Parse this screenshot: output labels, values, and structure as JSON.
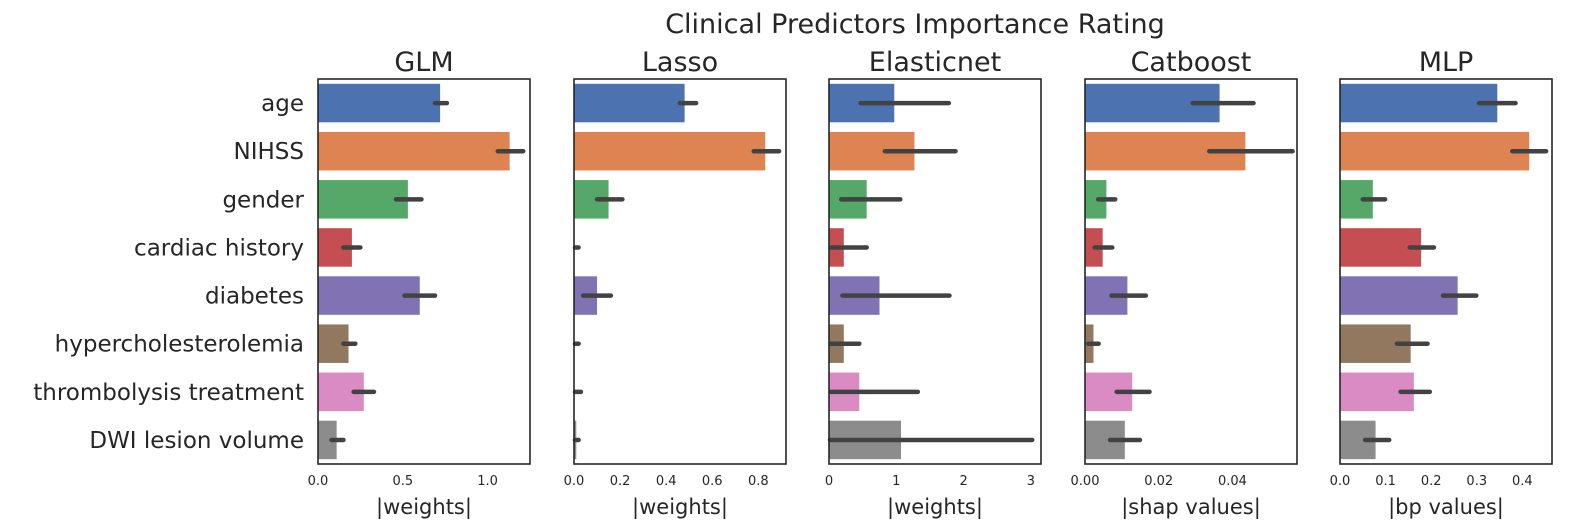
{
  "chart_data": {
    "type": "bar",
    "orientation": "horizontal",
    "title": "Clinical Predictors Importance Rating",
    "categories": [
      "age",
      "NIHSS",
      "gender",
      "cardiac history",
      "diabetes",
      "hypercholesterolemia",
      "thrombolysis treatment",
      "DWI lesion volume"
    ],
    "colors": [
      "#4c72b0",
      "#dd8452",
      "#55a868",
      "#c44e52",
      "#8172b3",
      "#937860",
      "#da8bc3",
      "#8c8c8c"
    ],
    "error_bar_color": "#424242",
    "grid": false,
    "panels": [
      {
        "title": "GLM",
        "xlabel": "|weights|",
        "xlim": [
          0,
          1.25
        ],
        "xticks": [
          0.0,
          0.5,
          1.0
        ],
        "xtick_labels": [
          "0.0",
          "0.5",
          "1.0"
        ],
        "values": [
          0.72,
          1.13,
          0.53,
          0.2,
          0.6,
          0.18,
          0.27,
          0.11
        ],
        "ci": [
          [
            0.69,
            0.76
          ],
          [
            1.06,
            1.21
          ],
          [
            0.46,
            0.61
          ],
          [
            0.15,
            0.25
          ],
          [
            0.51,
            0.69
          ],
          [
            0.15,
            0.22
          ],
          [
            0.21,
            0.33
          ],
          [
            0.08,
            0.15
          ]
        ]
      },
      {
        "title": "Lasso",
        "xlabel": "|weights|",
        "xlim": [
          0,
          0.92
        ],
        "xticks": [
          0.0,
          0.2,
          0.4,
          0.6,
          0.8
        ],
        "xtick_labels": [
          "0.0",
          "0.2",
          "0.4",
          "0.6",
          "0.8"
        ],
        "values": [
          0.48,
          0.83,
          0.15,
          0.0,
          0.1,
          0.0,
          0.0,
          0.01
        ],
        "ci": [
          [
            0.46,
            0.53
          ],
          [
            0.78,
            0.89
          ],
          [
            0.1,
            0.21
          ],
          [
            0.0,
            0.02
          ],
          [
            0.04,
            0.16
          ],
          [
            0.0,
            0.02
          ],
          [
            0.0,
            0.03
          ],
          [
            0.0,
            0.02
          ]
        ]
      },
      {
        "title": "Elasticnet",
        "xlabel": "|weights|",
        "xlim": [
          0,
          3.15
        ],
        "xticks": [
          0,
          1,
          2,
          3
        ],
        "xtick_labels": [
          "0",
          "1",
          "2",
          "3"
        ],
        "values": [
          0.97,
          1.27,
          0.56,
          0.22,
          0.75,
          0.22,
          0.45,
          1.07
        ],
        "ci": [
          [
            0.47,
            1.78
          ],
          [
            0.83,
            1.88
          ],
          [
            0.18,
            1.06
          ],
          [
            0.03,
            0.56
          ],
          [
            0.2,
            1.79
          ],
          [
            0.03,
            0.45
          ],
          [
            0.03,
            1.32
          ],
          [
            0.0,
            3.02
          ]
        ]
      },
      {
        "title": "Catboost",
        "xlabel": "|shap values|",
        "xlim": [
          0,
          0.0575
        ],
        "xticks": [
          0.0,
          0.02,
          0.04
        ],
        "xtick_labels": [
          "0.00",
          "0.02",
          "0.04"
        ],
        "values": [
          0.0365,
          0.0435,
          0.0058,
          0.0048,
          0.0115,
          0.0023,
          0.0128,
          0.0108
        ],
        "ci": [
          [
            0.0292,
            0.0457
          ],
          [
            0.0337,
            0.0563
          ],
          [
            0.0036,
            0.0082
          ],
          [
            0.0026,
            0.0074
          ],
          [
            0.0072,
            0.0165
          ],
          [
            0.0009,
            0.0037
          ],
          [
            0.0086,
            0.0175
          ],
          [
            0.0068,
            0.0149
          ]
        ]
      },
      {
        "title": "MLP",
        "xlabel": "|bp values|",
        "xlim": [
          0,
          0.465
        ],
        "xticks": [
          0.0,
          0.1,
          0.2,
          0.3,
          0.4
        ],
        "xtick_labels": [
          "0.0",
          "0.1",
          "0.2",
          "0.3",
          "0.4"
        ],
        "values": [
          0.345,
          0.415,
          0.072,
          0.178,
          0.258,
          0.155,
          0.162,
          0.078
        ],
        "ci": [
          [
            0.305,
            0.385
          ],
          [
            0.378,
            0.452
          ],
          [
            0.05,
            0.099
          ],
          [
            0.153,
            0.206
          ],
          [
            0.226,
            0.299
          ],
          [
            0.125,
            0.192
          ],
          [
            0.133,
            0.197
          ],
          [
            0.055,
            0.108
          ]
        ]
      }
    ]
  }
}
